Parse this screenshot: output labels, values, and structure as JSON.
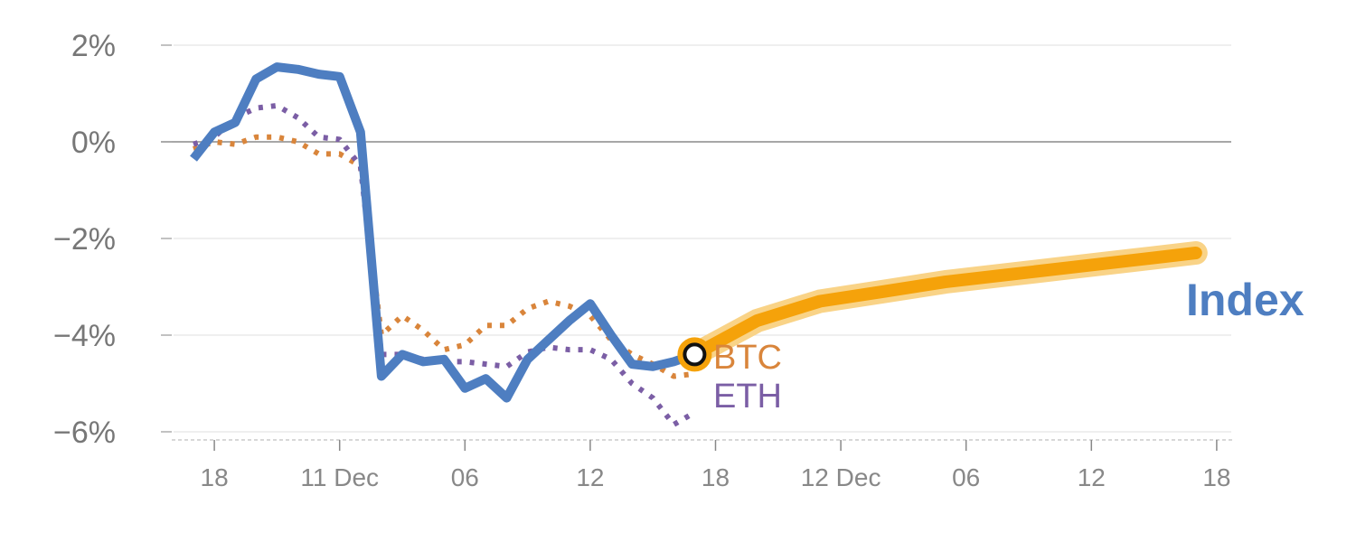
{
  "chart_data": {
    "type": "line",
    "y_unit": "%",
    "ylim": [
      -6,
      2
    ],
    "y_ticks": [
      {
        "value": 2,
        "label": "2%"
      },
      {
        "value": 0,
        "label": "0%"
      },
      {
        "value": -2,
        "label": "−2%"
      },
      {
        "value": -4,
        "label": "−4%"
      },
      {
        "value": -6,
        "label": "−6%"
      }
    ],
    "x_ticks": [
      {
        "x": 1,
        "label": "18"
      },
      {
        "x": 7,
        "label": "11 Dec"
      },
      {
        "x": 13,
        "label": "06"
      },
      {
        "x": 19,
        "label": "12"
      },
      {
        "x": 25,
        "label": "18"
      },
      {
        "x": 31,
        "label": "12 Dec"
      },
      {
        "x": 37,
        "label": "06"
      },
      {
        "x": 43,
        "label": "12"
      },
      {
        "x": 49,
        "label": "18"
      }
    ],
    "xlim": [
      0,
      50
    ],
    "grid": true,
    "zero_line": true,
    "series": [
      {
        "name": "Index",
        "color": "#4e7ec1",
        "style": "solid",
        "points": [
          [
            0,
            -0.35
          ],
          [
            1,
            0.2
          ],
          [
            2,
            0.4
          ],
          [
            3,
            1.3
          ],
          [
            4,
            1.55
          ],
          [
            5,
            1.5
          ],
          [
            6,
            1.4
          ],
          [
            7,
            1.35
          ],
          [
            8,
            0.2
          ],
          [
            9,
            -4.85
          ],
          [
            10,
            -4.4
          ],
          [
            11,
            -4.55
          ],
          [
            12,
            -4.5
          ],
          [
            13,
            -5.1
          ],
          [
            14,
            -4.9
          ],
          [
            15,
            -5.3
          ],
          [
            16,
            -4.5
          ],
          [
            17,
            -4.1
          ],
          [
            18,
            -3.7
          ],
          [
            19,
            -3.35
          ],
          [
            20,
            -4.0
          ],
          [
            21,
            -4.6
          ],
          [
            22,
            -4.65
          ],
          [
            23,
            -4.55
          ],
          [
            24,
            -4.4
          ]
        ]
      },
      {
        "name": "BTC",
        "color": "#d9853b",
        "style": "dotted",
        "points": [
          [
            0,
            -0.15
          ],
          [
            1,
            0.0
          ],
          [
            2,
            -0.05
          ],
          [
            3,
            0.1
          ],
          [
            4,
            0.1
          ],
          [
            5,
            0.0
          ],
          [
            6,
            -0.25
          ],
          [
            7,
            -0.25
          ],
          [
            8,
            -0.5
          ],
          [
            9,
            -4.0
          ],
          [
            10,
            -3.6
          ],
          [
            11,
            -3.9
          ],
          [
            12,
            -4.3
          ],
          [
            13,
            -4.2
          ],
          [
            14,
            -3.8
          ],
          [
            15,
            -3.8
          ],
          [
            16,
            -3.45
          ],
          [
            17,
            -3.3
          ],
          [
            18,
            -3.4
          ],
          [
            19,
            -3.6
          ],
          [
            20,
            -4.1
          ],
          [
            21,
            -4.4
          ],
          [
            22,
            -4.6
          ],
          [
            23,
            -4.85
          ],
          [
            24,
            -4.8
          ]
        ]
      },
      {
        "name": "ETH",
        "color": "#7b5ea5",
        "style": "dotted",
        "points": [
          [
            0,
            -0.05
          ],
          [
            1,
            0.1
          ],
          [
            2,
            0.5
          ],
          [
            3,
            0.7
          ],
          [
            4,
            0.75
          ],
          [
            5,
            0.5
          ],
          [
            6,
            0.1
          ],
          [
            7,
            0.05
          ],
          [
            8,
            -0.5
          ],
          [
            9,
            -4.4
          ],
          [
            10,
            -4.4
          ],
          [
            11,
            -4.5
          ],
          [
            12,
            -4.55
          ],
          [
            13,
            -4.55
          ],
          [
            14,
            -4.6
          ],
          [
            15,
            -4.65
          ],
          [
            16,
            -4.35
          ],
          [
            17,
            -4.25
          ],
          [
            18,
            -4.3
          ],
          [
            19,
            -4.3
          ],
          [
            20,
            -4.5
          ],
          [
            21,
            -5.0
          ],
          [
            22,
            -5.3
          ],
          [
            23,
            -5.85
          ],
          [
            24,
            -5.6
          ]
        ]
      },
      {
        "name": "Index",
        "role": "projection",
        "color": "#f5a20a",
        "style": "solid-thick",
        "points": [
          [
            24,
            -4.4
          ],
          [
            27,
            -3.7
          ],
          [
            30,
            -3.3
          ],
          [
            33,
            -3.1
          ],
          [
            36,
            -2.9
          ],
          [
            39,
            -2.75
          ],
          [
            42,
            -2.6
          ],
          [
            45,
            -2.45
          ],
          [
            48,
            -2.3
          ]
        ]
      }
    ],
    "marker": {
      "x": 24,
      "y": -4.4
    },
    "labels": [
      {
        "text": "BTC",
        "color": "#d9853b"
      },
      {
        "text": "ETH",
        "color": "#7b5ea5"
      },
      {
        "text": "Index",
        "color": "#4e7ec1"
      }
    ]
  }
}
